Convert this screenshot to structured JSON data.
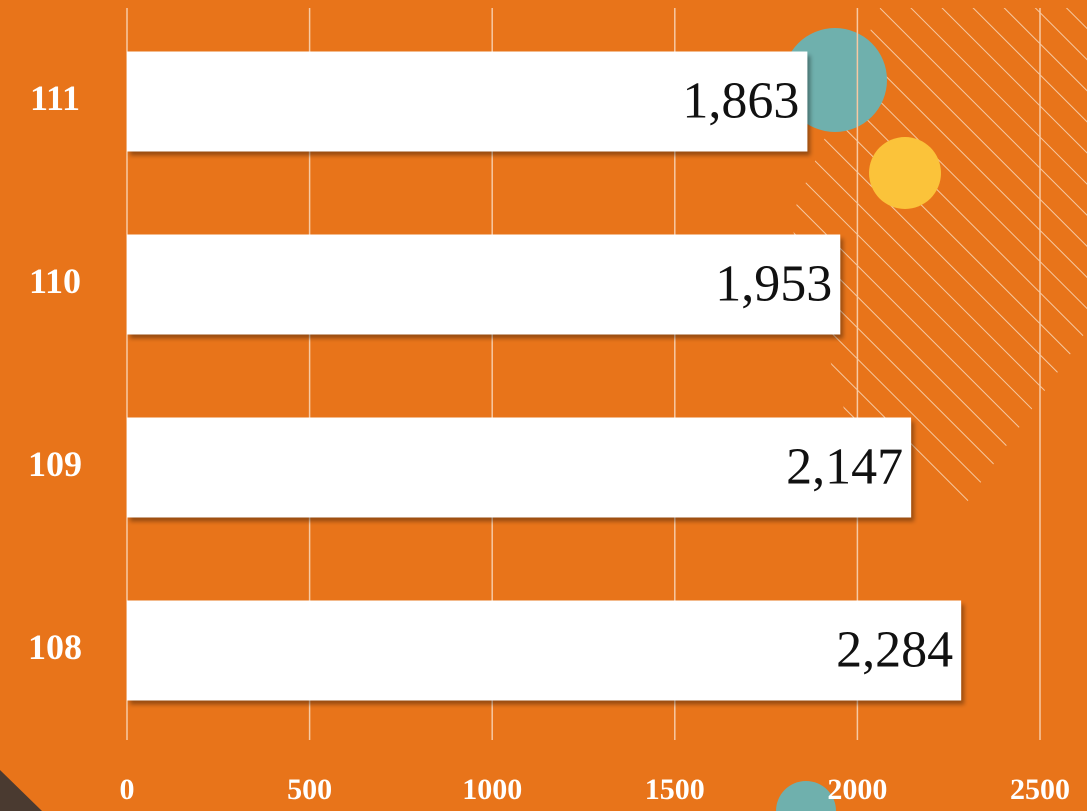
{
  "chart_data": {
    "type": "bar",
    "orientation": "horizontal",
    "categories": [
      "111",
      "110",
      "109",
      "108"
    ],
    "values": [
      1863,
      1953,
      2147,
      2284
    ],
    "value_labels": [
      "1,863",
      "1,953",
      "2,147",
      "2,284"
    ],
    "color": "#ffffff",
    "xlim": [
      0,
      2500
    ],
    "xticks": [
      0,
      500,
      1000,
      1500,
      2000,
      2500
    ],
    "grid": true
  }
}
